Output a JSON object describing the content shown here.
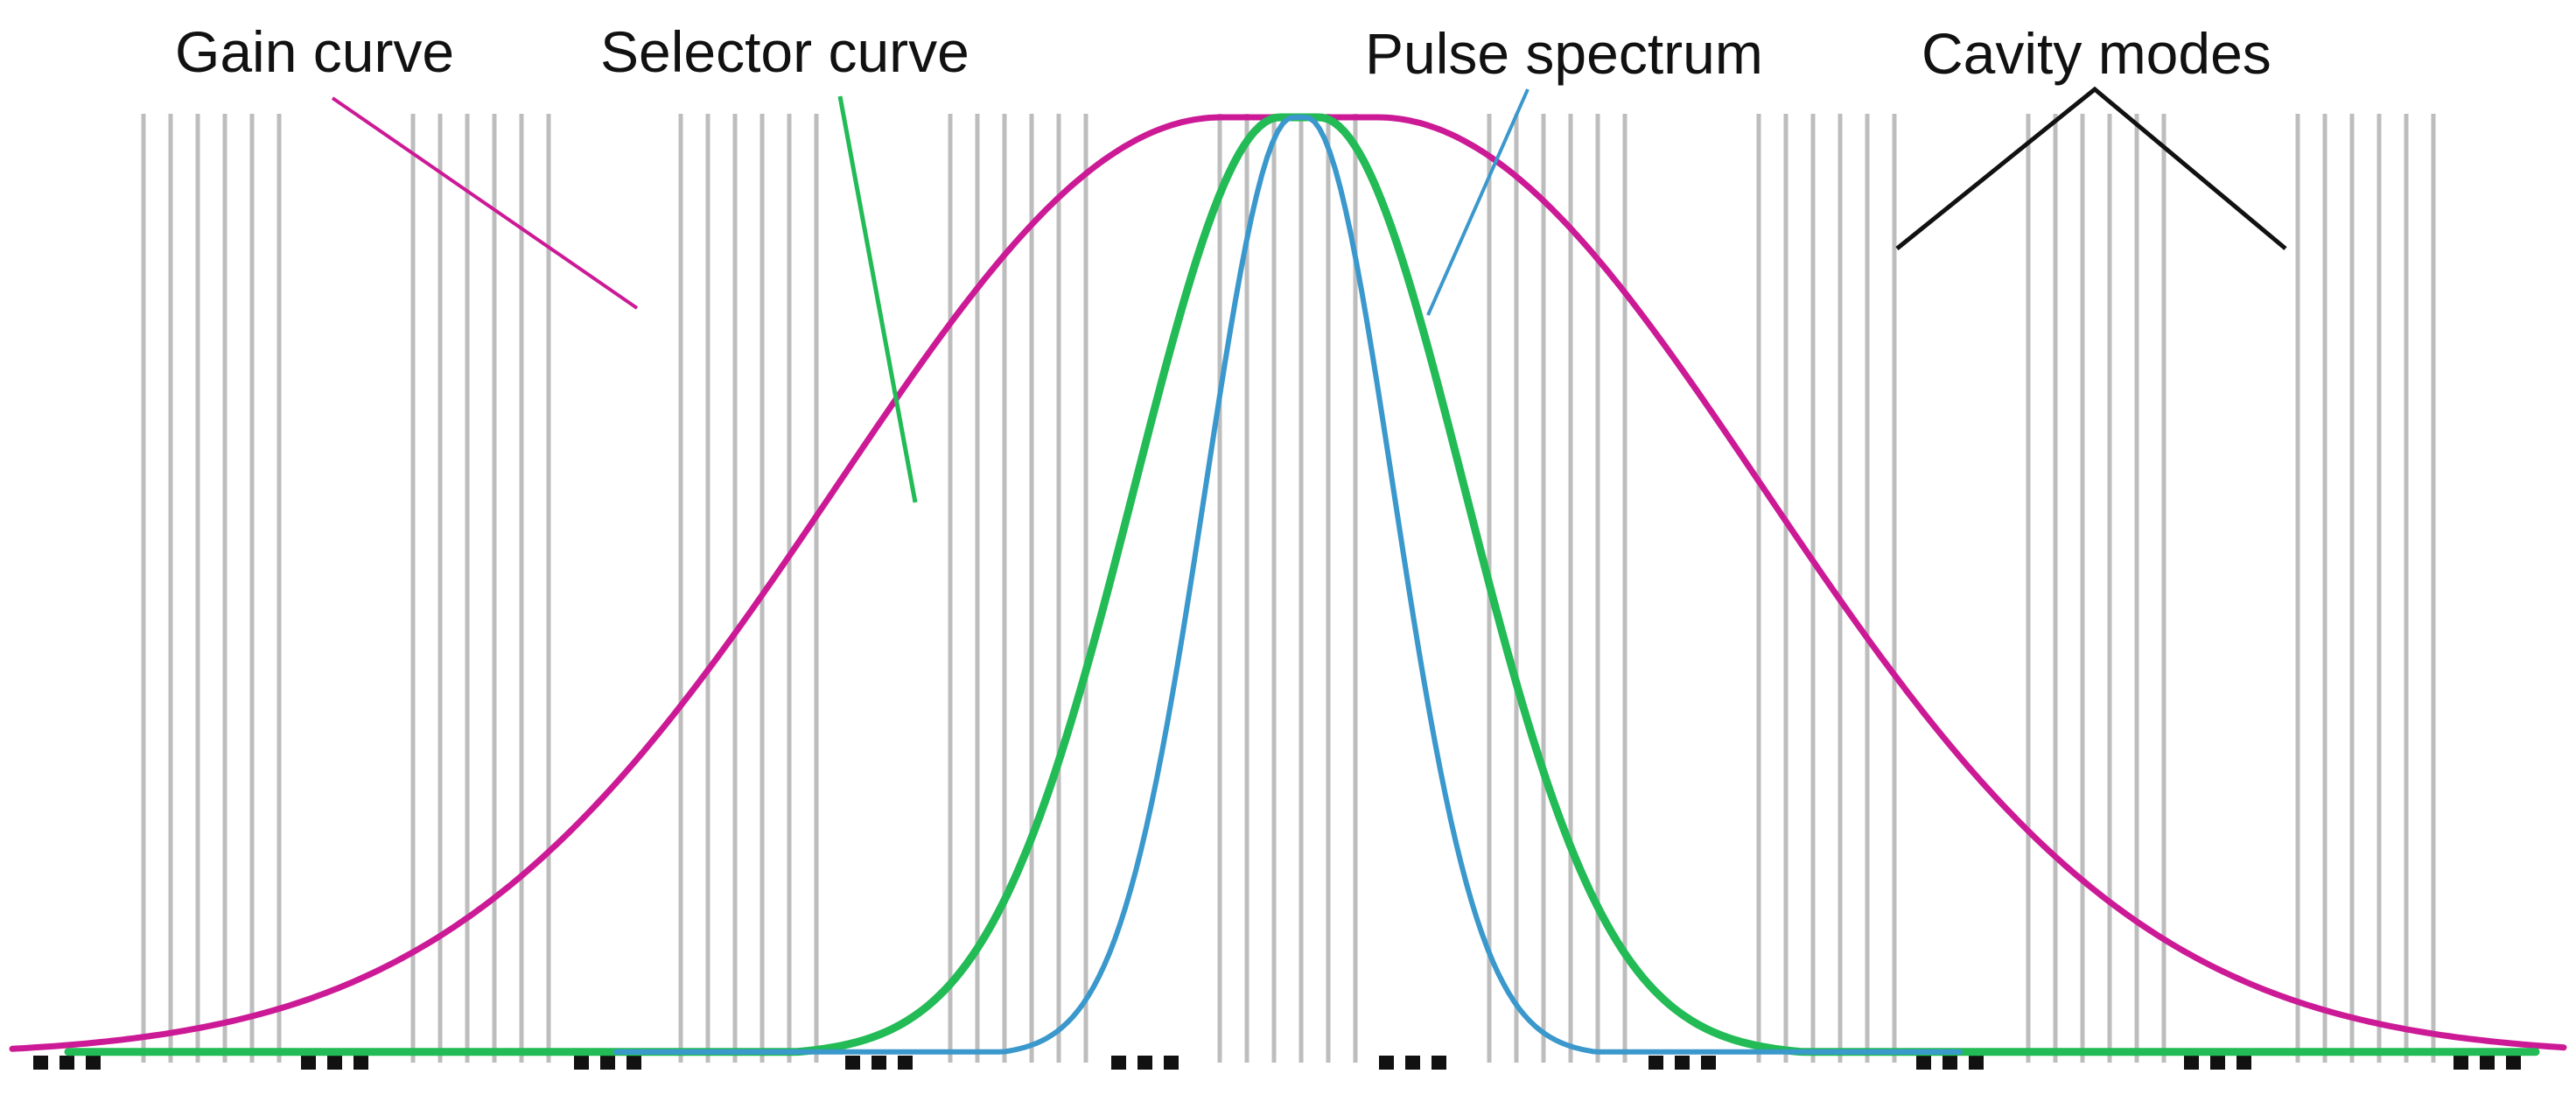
{
  "labels": {
    "gain_curve": "Gain curve",
    "selector_curve": "Selector curve",
    "pulse_spectrum": "Pulse spectrum",
    "cavity_modes": "Cavity modes"
  },
  "colors": {
    "gain_curve": "#cc1a96",
    "selector_curve": "#22bb55",
    "pulse_spectrum": "#3a98cc",
    "cavity_modes": "#bdbdbd",
    "leader_cavity": "#111111",
    "baseline_dots": "#111111"
  },
  "diagram": {
    "description_free": true,
    "center_frequency": 0,
    "curve_peak": 1,
    "gain_curve_width": 0.53,
    "selector_curve_width": 0.2,
    "pulse_spectrum_width": 0.12,
    "cavity_mode_groups": 10,
    "lines_per_group": 6
  }
}
